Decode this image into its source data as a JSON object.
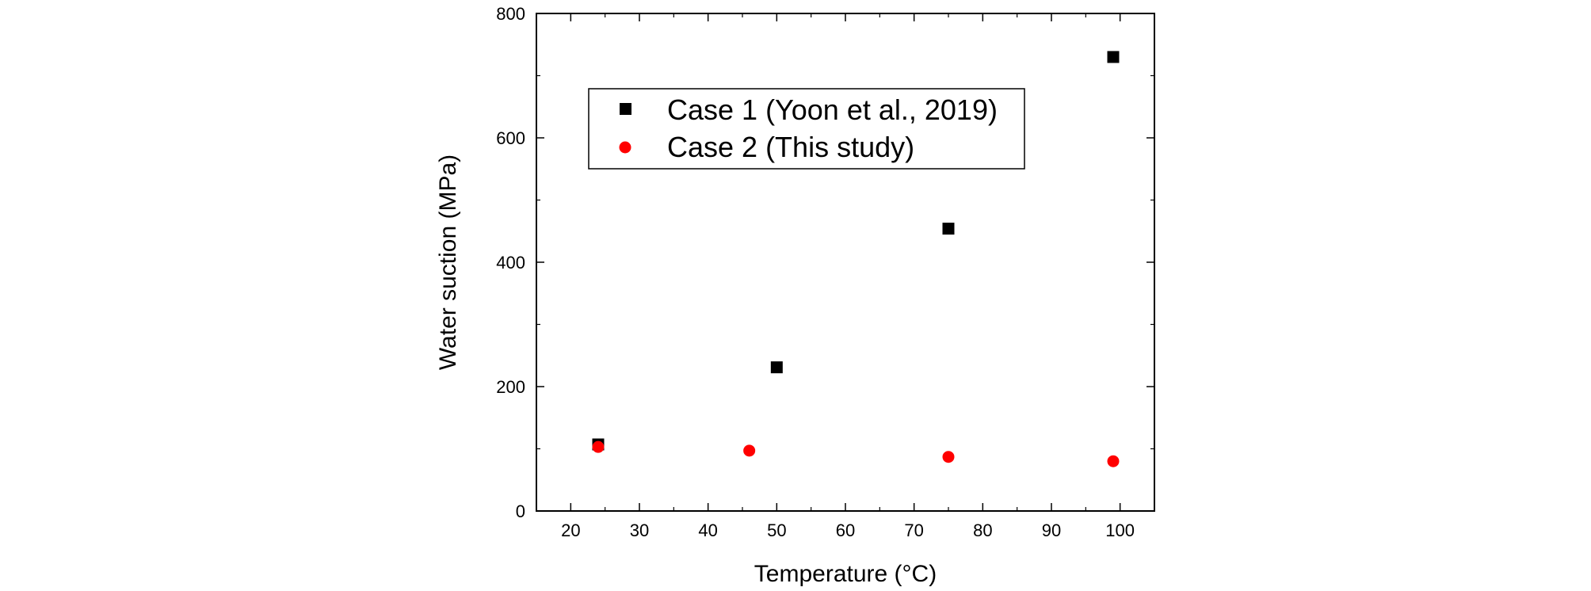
{
  "chart_data": {
    "type": "scatter",
    "xlabel": "Temperature (°C)",
    "ylabel": "Water suction (MPa)",
    "xlim": [
      15,
      105
    ],
    "ylim": [
      0,
      800
    ],
    "xticks": [
      20,
      30,
      40,
      50,
      60,
      70,
      80,
      90,
      100
    ],
    "yticks": [
      0,
      200,
      400,
      600,
      800
    ],
    "grid": false,
    "legend_position": "upper-left inside",
    "series": [
      {
        "name": "Case 1 (Yoon et al., 2019)",
        "marker": "square",
        "color": "#000000",
        "x": [
          24,
          50,
          75,
          99
        ],
        "y": [
          107,
          231,
          454,
          730
        ]
      },
      {
        "name": "Case 2 (This study)",
        "marker": "circle",
        "color": "#ff0000",
        "x": [
          24,
          46,
          75,
          99
        ],
        "y": [
          103,
          97,
          87,
          80
        ]
      }
    ]
  }
}
